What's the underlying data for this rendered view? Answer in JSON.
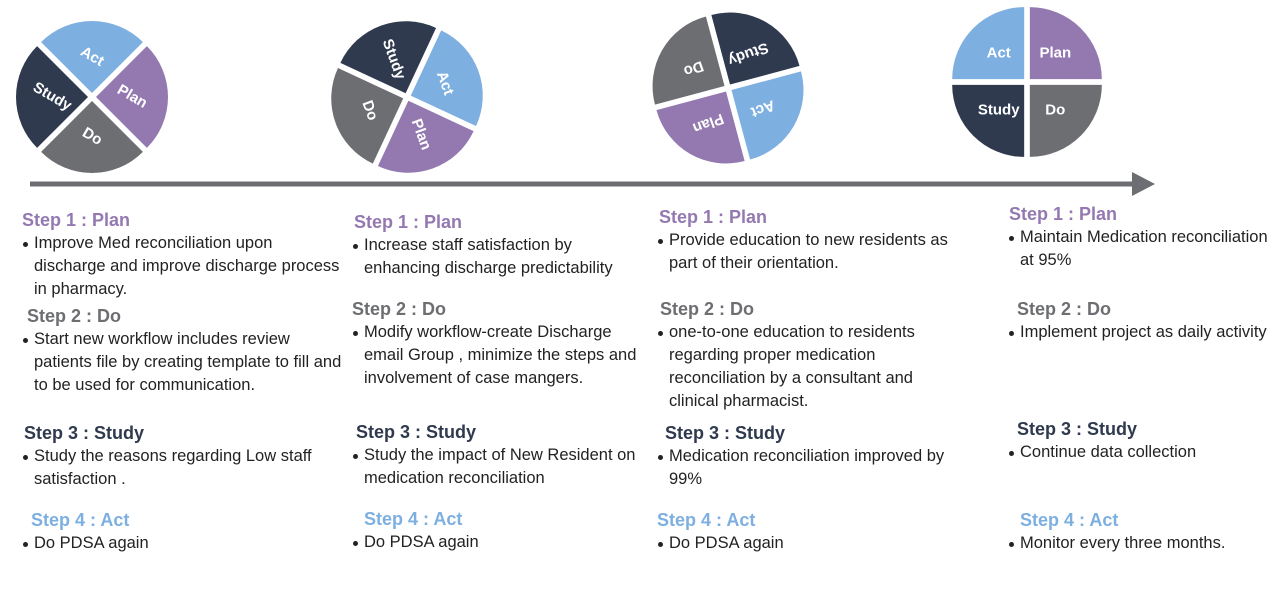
{
  "columns": [
    {
      "wheel": {
        "plan": "Plan",
        "do": "Do",
        "study": "Study",
        "act": "Act"
      },
      "steps": [
        {
          "heading": "Step 1 : Plan",
          "items": [
            "Improve Med reconciliation upon discharge and improve discharge process in pharmacy."
          ]
        },
        {
          "heading": "Step 2 : Do",
          "items": [
            "Start new workflow includes review patients file by creating template to fill and to be used  for communication."
          ]
        },
        {
          "heading": "Step 3 : Study",
          "items": [
            "Study the reasons regarding Low staff satisfaction ."
          ]
        },
        {
          "heading": "Step 4 : Act",
          "items": [
            "Do PDSA again"
          ]
        }
      ]
    },
    {
      "wheel": {
        "plan": "Plan",
        "do": "Do",
        "study": "Study",
        "act": "Act"
      },
      "steps": [
        {
          "heading": "Step 1 : Plan",
          "items": [
            "Increase staff satisfaction by enhancing discharge predictability"
          ]
        },
        {
          "heading": "Step 2 : Do",
          "items": [
            "Modify workflow-create Discharge email Group , minimize the steps and involvement of case mangers."
          ]
        },
        {
          "heading": "Step 3 : Study",
          "items": [
            "Study the impact of New Resident on medication reconciliation"
          ]
        },
        {
          "heading": "Step 4 : Act",
          "items": [
            "Do PDSA again"
          ]
        }
      ]
    },
    {
      "wheel": {
        "plan": "Plan",
        "do": "Do",
        "study": "Study",
        "act": "Act"
      },
      "steps": [
        {
          "heading": "Step 1 : Plan",
          "items": [
            "Provide education to  new residents as part of their orientation."
          ]
        },
        {
          "heading": "Step 2 : Do",
          "items": [
            "one-to-one education to residents regarding proper medication reconciliation by a consultant and clinical pharmacist."
          ]
        },
        {
          "heading": "Step 3 : Study",
          "items": [
            "Medication reconciliation  improved by 99%"
          ]
        },
        {
          "heading": "Step 4 : Act",
          "items": [
            "Do PDSA again"
          ]
        }
      ]
    },
    {
      "wheel": {
        "plan": "Plan",
        "do": "Do",
        "study": "Study",
        "act": "Act"
      },
      "steps": [
        {
          "heading": "Step 1 : Plan",
          "items": [
            "Maintain Medication reconciliation at 95%"
          ]
        },
        {
          "heading": "Step 2 : Do",
          "items": [
            "Implement project as daily activity"
          ]
        },
        {
          "heading": "Step 3 : Study",
          "items": [
            "Continue data collection"
          ]
        },
        {
          "heading": "Step 4 : Act",
          "items": [
            "Monitor every three months."
          ]
        }
      ]
    }
  ]
}
